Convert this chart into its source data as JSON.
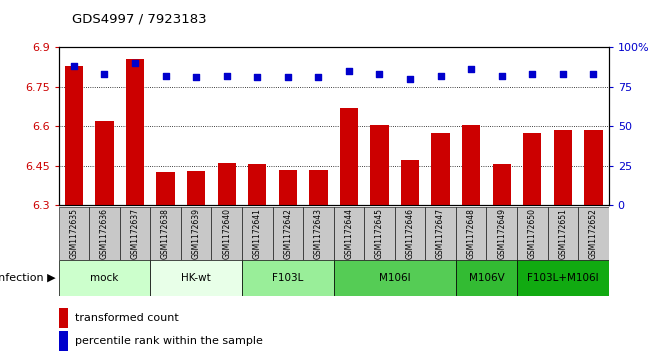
{
  "title": "GDS4997 / 7923183",
  "samples": [
    "GSM1172635",
    "GSM1172636",
    "GSM1172637",
    "GSM1172638",
    "GSM1172639",
    "GSM1172640",
    "GSM1172641",
    "GSM1172642",
    "GSM1172643",
    "GSM1172644",
    "GSM1172645",
    "GSM1172646",
    "GSM1172647",
    "GSM1172648",
    "GSM1172649",
    "GSM1172650",
    "GSM1172651",
    "GSM1172652"
  ],
  "bar_values": [
    6.83,
    6.62,
    6.855,
    6.425,
    6.43,
    6.46,
    6.455,
    6.435,
    6.435,
    6.67,
    6.605,
    6.47,
    6.575,
    6.605,
    6.455,
    6.575,
    6.585,
    6.585
  ],
  "dot_values": [
    88,
    83,
    90,
    82,
    81,
    82,
    81,
    81,
    81,
    85,
    83,
    80,
    82,
    86,
    82,
    83,
    83,
    83
  ],
  "ylim_left": [
    6.3,
    6.9
  ],
  "ylim_right": [
    0,
    100
  ],
  "yticks_left": [
    6.3,
    6.45,
    6.6,
    6.75,
    6.9
  ],
  "yticks_right": [
    0,
    25,
    50,
    75,
    100
  ],
  "bar_color": "#CC0000",
  "dot_color": "#0000CC",
  "groups": [
    {
      "label": "mock",
      "start": 0,
      "end": 2,
      "color": "#ccffcc"
    },
    {
      "label": "HK-wt",
      "start": 3,
      "end": 5,
      "color": "#e8ffe8"
    },
    {
      "label": "F103L",
      "start": 6,
      "end": 8,
      "color": "#99ee99"
    },
    {
      "label": "M106I",
      "start": 9,
      "end": 12,
      "color": "#55cc55"
    },
    {
      "label": "M106V",
      "start": 13,
      "end": 14,
      "color": "#33bb33"
    },
    {
      "label": "F103L+M106I",
      "start": 15,
      "end": 17,
      "color": "#11aa11"
    }
  ],
  "sample_box_color": "#c8c8c8",
  "infection_label": "infection",
  "legend_bar_label": "transformed count",
  "legend_dot_label": "percentile rank within the sample",
  "bar_color_legend": "#CC0000",
  "dot_color_legend": "#0000CC"
}
